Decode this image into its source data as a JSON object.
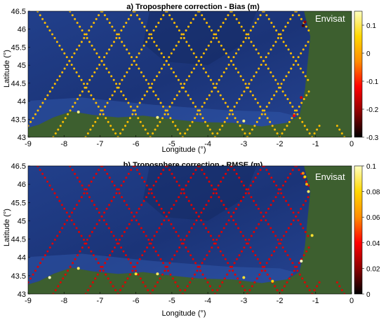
{
  "chart_data": [
    {
      "type": "scatter",
      "panel": "a",
      "title": "a) Troposphere correction - Bias (m)",
      "xlabel": "Longitude (°)",
      "ylabel": "Latitude (°)",
      "xlim": [
        -9,
        0
      ],
      "ylim": [
        43,
        46.5
      ],
      "xticks": [
        "-9",
        "-8",
        "-7",
        "-6",
        "-5",
        "-4",
        "-3",
        "-2",
        "-1",
        "0"
      ],
      "yticks": [
        "46.5",
        "46",
        "45.5",
        "45",
        "44.5",
        "44",
        "43.5",
        "43"
      ],
      "annotation": "Envisat",
      "colorbar": {
        "range": [
          -0.3,
          0.15
        ],
        "ticks": [
          "0.1",
          "0",
          "-0.1",
          "-0.2",
          "-0.3"
        ],
        "colormap": [
          "#000000",
          "#8b0000",
          "#ff0000",
          "#ff8c00",
          "#ffd700",
          "#ffffc0"
        ]
      },
      "track_value": 0.03,
      "tracks": {
        "ascending_start_lon": [
          -9.2,
          -8.3,
          -7.4,
          -6.5,
          -5.6,
          -4.7,
          -3.8,
          -2.9,
          -2.0,
          -1.1
        ],
        "descending_start_lon": [
          -8.8,
          -7.9,
          -7.0,
          -6.1,
          -5.2,
          -4.3,
          -3.4,
          -2.5,
          -1.6,
          -0.7
        ],
        "lon_span_full": 2.3
      },
      "special_points": [
        {
          "lon": -1.35,
          "lat": 46.1,
          "value": -0.25
        },
        {
          "lon": -1.3,
          "lat": 46.2,
          "value": -0.2
        },
        {
          "lon": -1.4,
          "lat": 44.1,
          "value": -0.15
        },
        {
          "lon": -1.6,
          "lat": 43.6,
          "value": -0.12
        },
        {
          "lon": -7.6,
          "lat": 43.7,
          "value": 0.12
        },
        {
          "lon": -5.4,
          "lat": 43.55,
          "value": 0.12
        },
        {
          "lon": -3.0,
          "lat": 43.45,
          "value": 0.12
        }
      ]
    },
    {
      "type": "scatter",
      "panel": "b",
      "title": "b) Troposphere correction - RMSE (m)",
      "xlabel": "Longitude (°)",
      "ylabel": "Latitude (°)",
      "xlim": [
        -9,
        0
      ],
      "ylim": [
        43,
        46.5
      ],
      "xticks": [
        "-9",
        "-8",
        "-7",
        "-6",
        "-5",
        "-4",
        "-3",
        "-2",
        "-1",
        "0"
      ],
      "yticks": [
        "46.5",
        "46",
        "45.5",
        "45",
        "44.5",
        "44",
        "43.5",
        "43"
      ],
      "annotation": "Envisat",
      "colorbar": {
        "range": [
          0,
          0.1
        ],
        "ticks": [
          "0.1",
          "0.08",
          "0.06",
          "0.04",
          "0.02",
          "0"
        ],
        "colormap": [
          "#000000",
          "#8b0000",
          "#ff0000",
          "#ff8c00",
          "#ffd700",
          "#ffffc0"
        ]
      },
      "track_value": 0.035,
      "tracks": {
        "ascending_start_lon": [
          -9.2,
          -8.3,
          -7.4,
          -6.5,
          -5.6,
          -4.7,
          -3.8,
          -2.9,
          -2.0,
          -1.1
        ],
        "descending_start_lon": [
          -8.8,
          -7.9,
          -7.0,
          -6.1,
          -5.2,
          -4.3,
          -3.4,
          -2.5,
          -1.6,
          -0.7
        ],
        "lon_span_full": 2.3
      },
      "special_points": [
        {
          "lon": -1.3,
          "lat": 46.2,
          "value": 0.08
        },
        {
          "lon": -1.25,
          "lat": 46.0,
          "value": 0.07
        },
        {
          "lon": -1.2,
          "lat": 45.8,
          "value": 0.09
        },
        {
          "lon": -1.35,
          "lat": 46.3,
          "value": 0.06
        },
        {
          "lon": -1.1,
          "lat": 44.6,
          "value": 0.085
        },
        {
          "lon": -1.4,
          "lat": 43.9,
          "value": 0.1
        },
        {
          "lon": -7.6,
          "lat": 43.7,
          "value": 0.09
        },
        {
          "lon": -8.4,
          "lat": 43.45,
          "value": 0.1
        },
        {
          "lon": -6.0,
          "lat": 43.55,
          "value": 0.085
        },
        {
          "lon": -5.4,
          "lat": 43.55,
          "value": 0.09
        },
        {
          "lon": -3.0,
          "lat": 43.45,
          "value": 0.085
        },
        {
          "lon": -2.2,
          "lat": 43.35,
          "value": 0.08
        }
      ]
    }
  ]
}
